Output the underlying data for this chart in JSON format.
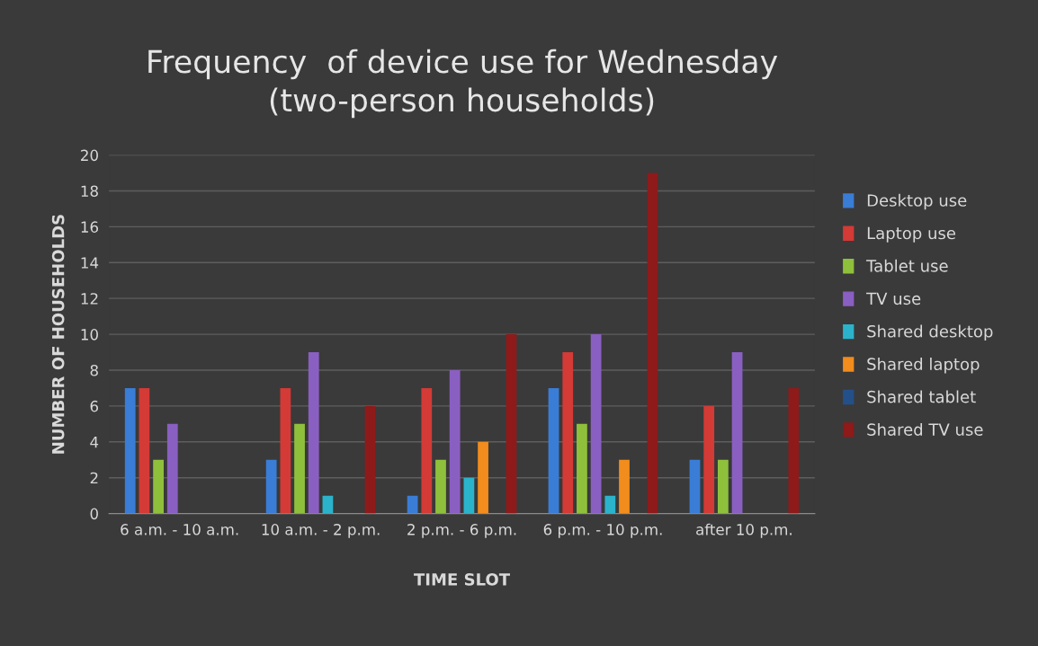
{
  "chart_data": {
    "type": "bar",
    "title": "Frequency  of device use for Wednesday\n(two-person households)",
    "xlabel": "TIME SLOT",
    "ylabel": "NUMBER OF HOUSEHOLDS",
    "categories": [
      "6 a.m. - 10 a.m.",
      "10 a.m. - 2 p.m.",
      "2 p.m. - 6 p.m.",
      "6 p.m. - 10 p.m.",
      "after 10 p.m."
    ],
    "series": [
      {
        "name": "Desktop use",
        "color": "#3a7dd6",
        "values": [
          7,
          3,
          1,
          7,
          3
        ]
      },
      {
        "name": "Laptop use",
        "color": "#d43a36",
        "values": [
          7,
          7,
          7,
          9,
          6
        ]
      },
      {
        "name": "Tablet use",
        "color": "#8fc03c",
        "values": [
          3,
          5,
          3,
          5,
          3
        ]
      },
      {
        "name": "TV use",
        "color": "#8a5fc2",
        "values": [
          5,
          9,
          8,
          10,
          9
        ]
      },
      {
        "name": "Shared desktop",
        "color": "#2bb3cc",
        "values": [
          0,
          1,
          2,
          1,
          0
        ]
      },
      {
        "name": "Shared laptop",
        "color": "#f28c1c",
        "values": [
          0,
          0,
          4,
          3,
          0
        ]
      },
      {
        "name": "Shared tablet",
        "color": "#24508a",
        "values": [
          0,
          0,
          0,
          0,
          0
        ]
      },
      {
        "name": "Shared TV use",
        "color": "#8e1a1a",
        "values": [
          0,
          6,
          10,
          19,
          7
        ]
      }
    ],
    "ylim": [
      0,
      20
    ],
    "yticks": [
      0,
      2,
      4,
      6,
      8,
      10,
      12,
      14,
      16,
      18,
      20
    ],
    "grid": "y",
    "legend": "right"
  }
}
